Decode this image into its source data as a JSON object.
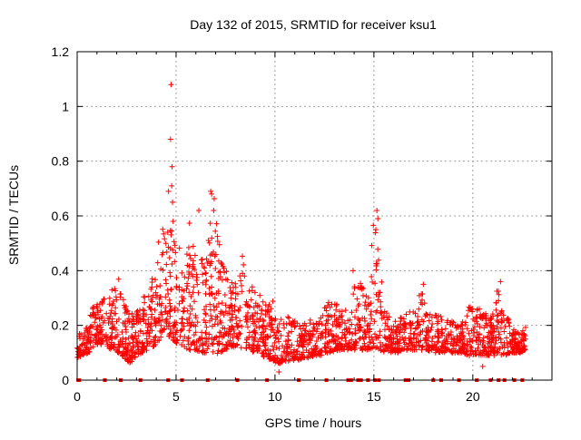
{
  "chart_data": {
    "type": "scatter",
    "title": "Day 132 of 2015, SRMTID for receiver ksu1",
    "xlabel": "GPS time / hours",
    "ylabel": "SRMTID / TECUs",
    "xlim": [
      0,
      24
    ],
    "ylim": [
      0,
      1.2
    ],
    "x_ticks": [
      0,
      5,
      10,
      15,
      20
    ],
    "x_tick_labels": [
      "0",
      "5",
      "10",
      "15",
      "20"
    ],
    "y_ticks": [
      0,
      0.2,
      0.4,
      0.6,
      0.8,
      1.0,
      1.2
    ],
    "y_tick_labels": [
      "0",
      "0.2",
      "0.4",
      "0.6",
      "0.8",
      "1",
      "1.2"
    ],
    "grid": true,
    "marker": "+",
    "series": [
      {
        "name": "ksu1",
        "color": "#ff0000",
        "envelope": {
          "x": [
            0.0,
            0.3,
            0.6,
            0.9,
            1.2,
            1.5,
            1.8,
            2.1,
            2.4,
            2.7,
            3.0,
            3.3,
            3.6,
            3.9,
            4.2,
            4.5,
            4.8,
            5.1,
            5.4,
            5.7,
            6.0,
            6.3,
            6.6,
            6.9,
            7.2,
            7.5,
            7.8,
            8.1,
            8.4,
            8.7,
            9.0,
            9.3,
            9.6,
            9.9,
            10.2,
            10.5,
            10.8,
            11.1,
            11.4,
            11.7,
            12.0,
            12.3,
            12.6,
            12.9,
            13.2,
            13.5,
            13.8,
            14.1,
            14.4,
            14.7,
            15.0,
            15.3,
            15.6,
            15.9,
            16.2,
            16.5,
            16.8,
            17.1,
            17.4,
            17.7,
            18.0,
            18.3,
            18.6,
            18.9,
            19.2,
            19.5,
            19.8,
            20.1,
            20.4,
            20.7,
            21.0,
            21.3,
            21.6,
            21.9,
            22.2,
            22.5,
            22.7
          ],
          "low": [
            0.08,
            0.09,
            0.1,
            0.13,
            0.13,
            0.12,
            0.11,
            0.1,
            0.08,
            0.06,
            0.09,
            0.1,
            0.11,
            0.12,
            0.15,
            0.17,
            0.15,
            0.13,
            0.12,
            0.11,
            0.11,
            0.1,
            0.1,
            0.09,
            0.1,
            0.11,
            0.12,
            0.12,
            0.11,
            0.11,
            0.1,
            0.09,
            0.08,
            0.07,
            0.06,
            0.07,
            0.07,
            0.07,
            0.08,
            0.08,
            0.09,
            0.09,
            0.1,
            0.1,
            0.11,
            0.11,
            0.11,
            0.11,
            0.11,
            0.11,
            0.12,
            0.11,
            0.1,
            0.1,
            0.1,
            0.11,
            0.11,
            0.11,
            0.11,
            0.11,
            0.1,
            0.1,
            0.1,
            0.1,
            0.1,
            0.1,
            0.09,
            0.09,
            0.09,
            0.09,
            0.09,
            0.09,
            0.09,
            0.1,
            0.1,
            0.1,
            0.11
          ],
          "high": [
            0.2,
            0.16,
            0.22,
            0.3,
            0.28,
            0.33,
            0.34,
            0.38,
            0.28,
            0.24,
            0.26,
            0.3,
            0.33,
            0.4,
            0.58,
            0.55,
            0.57,
            0.5,
            0.52,
            0.58,
            0.44,
            0.45,
            0.5,
            0.68,
            0.5,
            0.44,
            0.4,
            0.38,
            0.48,
            0.4,
            0.34,
            0.32,
            0.28,
            0.3,
            0.22,
            0.25,
            0.22,
            0.22,
            0.2,
            0.22,
            0.22,
            0.24,
            0.28,
            0.3,
            0.28,
            0.26,
            0.24,
            0.4,
            0.35,
            0.3,
            0.62,
            0.45,
            0.25,
            0.22,
            0.22,
            0.24,
            0.25,
            0.25,
            0.35,
            0.25,
            0.24,
            0.24,
            0.22,
            0.22,
            0.2,
            0.22,
            0.28,
            0.3,
            0.26,
            0.24,
            0.24,
            0.36,
            0.3,
            0.2,
            0.18,
            0.18,
            0.2
          ]
        },
        "outliers": [
          {
            "x": 4.75,
            "y": 1.08
          },
          {
            "x": 4.72,
            "y": 0.88
          },
          {
            "x": 4.8,
            "y": 0.78
          },
          {
            "x": 4.78,
            "y": 0.71
          },
          {
            "x": 4.62,
            "y": 0.69
          },
          {
            "x": 4.82,
            "y": 0.65
          },
          {
            "x": 4.85,
            "y": 0.58
          },
          {
            "x": 6.75,
            "y": 0.69
          },
          {
            "x": 6.8,
            "y": 0.68
          },
          {
            "x": 6.9,
            "y": 0.62
          },
          {
            "x": 6.15,
            "y": 0.62
          },
          {
            "x": 15.15,
            "y": 0.62
          },
          {
            "x": 15.2,
            "y": 0.59
          },
          {
            "x": 15.1,
            "y": 0.55
          },
          {
            "x": 17.5,
            "y": 0.35
          },
          {
            "x": 21.4,
            "y": 0.36
          },
          {
            "x": 13.95,
            "y": 0.4
          },
          {
            "x": 20.5,
            "y": 0.05
          },
          {
            "x": 10.2,
            "y": 0.03
          }
        ],
        "zero_markers": [
          0.05,
          0.1,
          1.4,
          2.2,
          3.2,
          4.6,
          5.3,
          6.6,
          8.1,
          9.6,
          11.2,
          12.6,
          13.7,
          13.85,
          14.2,
          14.35,
          14.7,
          15.05,
          15.25,
          16.6,
          16.75,
          18.0,
          18.4,
          19.3,
          20.2,
          20.9,
          21.3,
          21.6,
          22.1,
          22.5
        ]
      }
    ]
  }
}
